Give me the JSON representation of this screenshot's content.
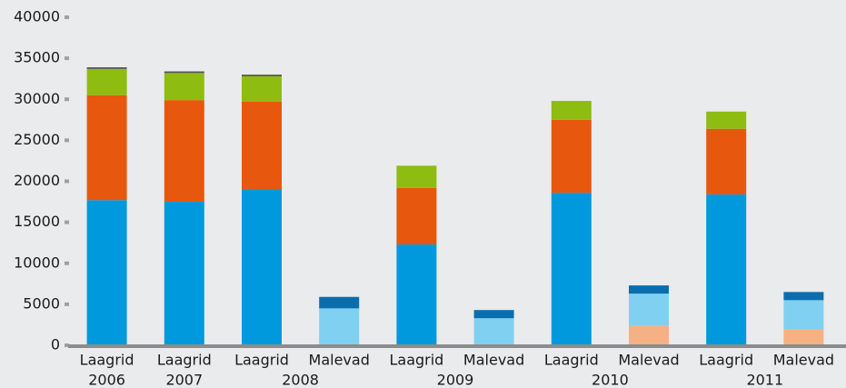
{
  "chart_data": {
    "type": "stacked_bar",
    "categories": [
      "Laagrid",
      "Laagrid",
      "Laagrid",
      "Malevad",
      "Laagrid",
      "Malevad",
      "Laagrid",
      "Malevad",
      "Laagrid",
      "Malevad"
    ],
    "groups": [
      {
        "label": "2006",
        "size": 1
      },
      {
        "label": "2007",
        "size": 1
      },
      {
        "label": "2008",
        "size": 2
      },
      {
        "label": "2009",
        "size": 2
      },
      {
        "label": "2010",
        "size": 2
      },
      {
        "label": "2011",
        "size": 2
      }
    ],
    "series": [
      {
        "color": "#f5b183",
        "values": [
          null,
          null,
          null,
          null,
          null,
          null,
          null,
          2400,
          null,
          1900
        ]
      },
      {
        "color": "#0099dd",
        "values": [
          17700,
          17500,
          19000,
          null,
          12300,
          null,
          18600,
          null,
          18400,
          null
        ]
      },
      {
        "color": "#80d0f2",
        "values": [
          null,
          null,
          null,
          4500,
          null,
          3300,
          null,
          3900,
          null,
          3600
        ]
      },
      {
        "color": "#e8570e",
        "values": [
          12800,
          12400,
          10700,
          null,
          6900,
          null,
          8900,
          null,
          8000,
          null
        ]
      },
      {
        "color": "#0a6eae",
        "values": [
          null,
          null,
          null,
          1400,
          null,
          1000,
          null,
          1000,
          null,
          1000
        ]
      },
      {
        "color": "#8fbc10",
        "values": [
          3200,
          3300,
          3100,
          null,
          2700,
          null,
          2300,
          null,
          2100,
          null
        ]
      },
      {
        "color": "#555555",
        "values": [
          200,
          200,
          200,
          null,
          null,
          null,
          null,
          null,
          null,
          null
        ]
      }
    ],
    "ylim": [
      0,
      40000
    ],
    "yticks": [
      0,
      5000,
      10000,
      15000,
      20000,
      25000,
      30000,
      35000,
      40000
    ]
  }
}
